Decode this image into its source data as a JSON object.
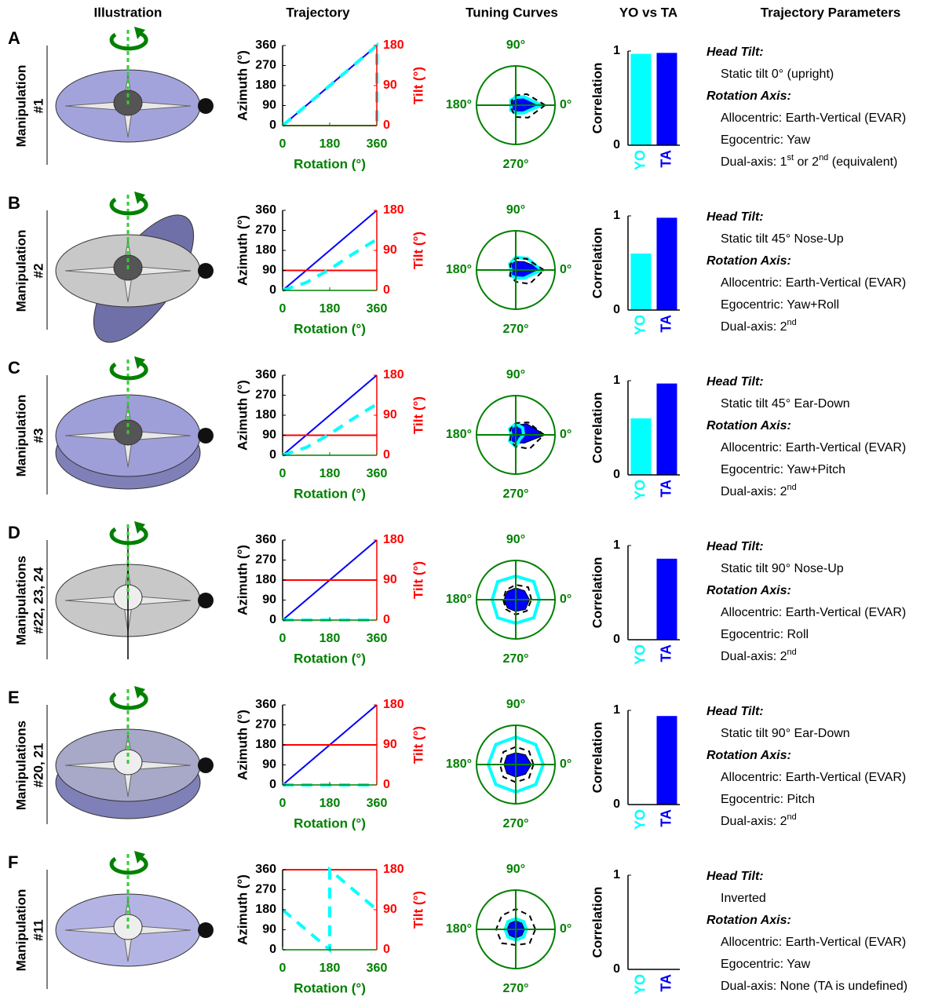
{
  "headers": [
    "Illustration",
    "Trajectory",
    "Tuning Curves",
    "YO vs TA",
    "Trajectory Parameters"
  ],
  "rows": [
    {
      "letter": "A",
      "manipulation": [
        "Manipulation",
        "#1"
      ],
      "head_tilt_label": "Head Tilt:",
      "head_tilt": "Static tilt 0° (upright)",
      "rotation_axis_label": "Rotation Axis:",
      "allocentric": "Allocentric: Earth-Vertical (EVAR)",
      "egocentric": "Egocentric: Yaw",
      "dual_axis": [
        "Dual-axis: 1",
        "st",
        " or 2",
        "nd",
        " (equivalent)"
      ]
    },
    {
      "letter": "B",
      "manipulation": [
        "Manipulation",
        "#2"
      ],
      "head_tilt_label": "Head Tilt:",
      "head_tilt": "Static tilt 45° Nose-Up",
      "rotation_axis_label": "Rotation Axis:",
      "allocentric": "Allocentric: Earth-Vertical (EVAR)",
      "egocentric": "Egocentric: Yaw+Roll",
      "dual_axis": [
        "Dual-axis: 2",
        "nd"
      ]
    },
    {
      "letter": "C",
      "manipulation": [
        "Manipulation",
        "#3"
      ],
      "head_tilt_label": "Head Tilt:",
      "head_tilt": "Static tilt 45° Ear-Down",
      "rotation_axis_label": "Rotation Axis:",
      "allocentric": "Allocentric: Earth-Vertical (EVAR)",
      "egocentric": "Egocentric: Yaw+Pitch",
      "dual_axis": [
        "Dual-axis: 2",
        "nd"
      ]
    },
    {
      "letter": "D",
      "manipulation": [
        "Manipulations",
        "#22, 23, 24"
      ],
      "head_tilt_label": "Head Tilt:",
      "head_tilt": "Static tilt 90° Nose-Up",
      "rotation_axis_label": "Rotation Axis:",
      "allocentric": "Allocentric: Earth-Vertical (EVAR)",
      "egocentric": "Egocentric: Roll",
      "dual_axis": [
        "Dual-axis: 2",
        "nd"
      ]
    },
    {
      "letter": "E",
      "manipulation": [
        "Manipulations",
        "#20, 21"
      ],
      "head_tilt_label": "Head Tilt:",
      "head_tilt": "Static tilt 90° Ear-Down",
      "rotation_axis_label": "Rotation Axis:",
      "allocentric": "Allocentric: Earth-Vertical (EVAR)",
      "egocentric": "Egocentric: Pitch",
      "dual_axis": [
        "Dual-axis: 2",
        "nd"
      ]
    },
    {
      "letter": "F",
      "manipulation": [
        "Manipulation",
        "#11"
      ],
      "head_tilt_label": "Head Tilt:",
      "head_tilt": "Inverted",
      "rotation_axis_label": "Rotation Axis:",
      "allocentric": "Allocentric: Earth-Vertical (EVAR)",
      "egocentric": "Egocentric: Yaw",
      "dual_axis": [
        "Dual-axis: None (TA is undefined)"
      ]
    }
  ],
  "chart_data": [
    {
      "type": "line",
      "xlabel": "Rotation (°)",
      "ylabel": "Azimuth (°)",
      "y2label": "Tilt (°)",
      "xlim": [
        0,
        360
      ],
      "xticks": [
        0,
        180,
        360
      ],
      "ylim": [
        0,
        360
      ],
      "yticks": [
        0,
        90,
        180,
        270,
        360
      ],
      "y2lim": [
        0,
        180
      ],
      "y2ticks": [
        0,
        90,
        180
      ],
      "series": [
        {
          "color": "#0000ff",
          "x": [
            0,
            360
          ],
          "values": [
            0,
            360
          ]
        },
        {
          "color": "#ff0000",
          "axis": "y2",
          "x": [
            0,
            360
          ],
          "values": [
            0,
            0
          ]
        },
        {
          "color": "#00ffff",
          "style": "dashed",
          "x": [
            0,
            360,
            360
          ],
          "values": [
            0,
            360,
            0
          ]
        }
      ]
    },
    {
      "type": "polar",
      "thetaticks": [
        {
          "value": 90,
          "label": "90°"
        },
        {
          "value": 180,
          "label": "180°"
        },
        {
          "value": 0,
          "label": "0°"
        },
        {
          "value": 270,
          "label": "270°"
        }
      ],
      "rlim": [
        0,
        1
      ],
      "theta": [
        0,
        45,
        90,
        135,
        180,
        225,
        270,
        315
      ],
      "series": [
        {
          "color": "#0000ff",
          "style": "filled",
          "values": [
            0.7,
            0.3,
            0.2,
            0.15,
            0.1,
            0.15,
            0.2,
            0.3
          ]
        },
        {
          "color": "#00ffff",
          "values": [
            0.65,
            0.3,
            0.2,
            0.18,
            0.12,
            0.18,
            0.2,
            0.28
          ]
        },
        {
          "color": "#000000",
          "style": "dashed",
          "values": [
            0.75,
            0.4,
            0.25,
            0.15,
            0.1,
            0.15,
            0.3,
            0.45
          ]
        }
      ]
    },
    {
      "type": "bar",
      "ylabel": "Correlation",
      "categories": [
        "YO",
        "TA"
      ],
      "colors": [
        "#00ffff",
        "#0000ff"
      ],
      "values": [
        0.97,
        0.98
      ],
      "ylim": [
        0,
        1
      ],
      "yticks": [
        0,
        1
      ]
    },
    {
      "type": "line",
      "xlabel": "Rotation (°)",
      "ylabel": "Azimuth (°)",
      "y2label": "Tilt (°)",
      "xlim": [
        0,
        360
      ],
      "xticks": [
        0,
        180,
        360
      ],
      "ylim": [
        0,
        360
      ],
      "yticks": [
        0,
        90,
        180,
        270,
        360
      ],
      "y2lim": [
        0,
        180
      ],
      "y2ticks": [
        0,
        90,
        180
      ],
      "series": [
        {
          "color": "#0000ff",
          "x": [
            0,
            360
          ],
          "values": [
            0,
            360
          ]
        },
        {
          "color": "#ff0000",
          "axis": "y2",
          "x": [
            0,
            360
          ],
          "values": [
            45,
            45
          ]
        },
        {
          "color": "#00ffff",
          "style": "dashed",
          "x": [
            0,
            90,
            180,
            270,
            360
          ],
          "values": [
            0,
            35,
            95,
            165,
            230
          ]
        }
      ]
    },
    {
      "type": "polar",
      "thetaticks": [
        {
          "value": 90,
          "label": "90°"
        },
        {
          "value": 180,
          "label": "180°"
        },
        {
          "value": 0,
          "label": "0°"
        },
        {
          "value": 270,
          "label": "270°"
        }
      ],
      "rlim": [
        0,
        1
      ],
      "theta": [
        0,
        45,
        90,
        135,
        180,
        225,
        270,
        315
      ],
      "series": [
        {
          "color": "#0000ff",
          "style": "filled",
          "values": [
            0.75,
            0.3,
            0.22,
            0.2,
            0.12,
            0.2,
            0.22,
            0.3
          ]
        },
        {
          "color": "#00ffff",
          "values": [
            0.65,
            0.42,
            0.32,
            0.22,
            0.12,
            0.2,
            0.2,
            0.3
          ]
        },
        {
          "color": "#000000",
          "style": "dashed",
          "values": [
            0.72,
            0.4,
            0.3,
            0.2,
            0.12,
            0.2,
            0.3,
            0.5
          ]
        }
      ]
    },
    {
      "type": "bar",
      "ylabel": "Correlation",
      "categories": [
        "YO",
        "TA"
      ],
      "colors": [
        "#00ffff",
        "#0000ff"
      ],
      "values": [
        0.6,
        0.98
      ],
      "ylim": [
        0,
        1
      ],
      "yticks": [
        0,
        1
      ]
    },
    {
      "type": "line",
      "xlabel": "Rotation (°)",
      "ylabel": "Azimuth (°)",
      "y2label": "Tilt (°)",
      "xlim": [
        0,
        360
      ],
      "xticks": [
        0,
        180,
        360
      ],
      "ylim": [
        0,
        360
      ],
      "yticks": [
        0,
        90,
        180,
        270,
        360
      ],
      "y2lim": [
        0,
        180
      ],
      "y2ticks": [
        0,
        90,
        180
      ],
      "series": [
        {
          "color": "#0000ff",
          "x": [
            0,
            360
          ],
          "values": [
            0,
            360
          ]
        },
        {
          "color": "#ff0000",
          "axis": "y2",
          "x": [
            0,
            360
          ],
          "values": [
            45,
            45
          ]
        },
        {
          "color": "#00ffff",
          "style": "dashed",
          "x": [
            0,
            90,
            180,
            270,
            360
          ],
          "values": [
            0,
            35,
            95,
            165,
            230
          ]
        }
      ]
    },
    {
      "type": "polar",
      "thetaticks": [
        {
          "value": 90,
          "label": "90°"
        },
        {
          "value": 180,
          "label": "180°"
        },
        {
          "value": 0,
          "label": "0°"
        },
        {
          "value": 270,
          "label": "270°"
        }
      ],
      "rlim": [
        0,
        1
      ],
      "theta": [
        0,
        45,
        90,
        135,
        180,
        225,
        270,
        315
      ],
      "series": [
        {
          "color": "#0000ff",
          "style": "filled",
          "values": [
            0.75,
            0.4,
            0.25,
            0.2,
            0.12,
            0.2,
            0.2,
            0.3
          ]
        },
        {
          "color": "#00ffff",
          "values": [
            0.2,
            0.25,
            0.28,
            0.22,
            0.12,
            0.22,
            0.3,
            0.15
          ]
        },
        {
          "color": "#000000",
          "style": "dashed",
          "values": [
            0.72,
            0.45,
            0.3,
            0.2,
            0.12,
            0.2,
            0.3,
            0.5
          ]
        }
      ]
    },
    {
      "type": "bar",
      "ylabel": "Correlation",
      "categories": [
        "YO",
        "TA"
      ],
      "colors": [
        "#00ffff",
        "#0000ff"
      ],
      "values": [
        0.6,
        0.97
      ],
      "ylim": [
        0,
        1
      ],
      "yticks": [
        0,
        1
      ]
    },
    {
      "type": "line",
      "xlabel": "Rotation (°)",
      "ylabel": "Azimuth (°)",
      "y2label": "Tilt (°)",
      "xlim": [
        0,
        360
      ],
      "xticks": [
        0,
        180,
        360
      ],
      "ylim": [
        0,
        360
      ],
      "yticks": [
        0,
        90,
        180,
        270,
        360
      ],
      "y2lim": [
        0,
        180
      ],
      "y2ticks": [
        0,
        90,
        180
      ],
      "series": [
        {
          "color": "#0000ff",
          "x": [
            0,
            360
          ],
          "values": [
            0,
            360
          ]
        },
        {
          "color": "#ff0000",
          "axis": "y2",
          "x": [
            0,
            360
          ],
          "values": [
            90,
            90
          ]
        },
        {
          "color": "#00ffff",
          "style": "dashed",
          "x": [
            0,
            360
          ],
          "values": [
            0,
            0
          ]
        }
      ]
    },
    {
      "type": "polar",
      "thetaticks": [
        {
          "value": 90,
          "label": "90°"
        },
        {
          "value": 180,
          "label": "180°"
        },
        {
          "value": 0,
          "label": "0°"
        },
        {
          "value": 270,
          "label": "270°"
        }
      ],
      "rlim": [
        0,
        1
      ],
      "theta": [
        0,
        45,
        90,
        135,
        180,
        225,
        270,
        315
      ],
      "series": [
        {
          "color": "#0000ff",
          "style": "filled",
          "values": [
            0.35,
            0.32,
            0.3,
            0.3,
            0.3,
            0.3,
            0.3,
            0.35
          ]
        },
        {
          "color": "#00ffff",
          "values": [
            0.6,
            0.65,
            0.6,
            0.65,
            0.6,
            0.65,
            0.6,
            0.65
          ]
        },
        {
          "color": "#000000",
          "style": "dashed",
          "values": [
            0.4,
            0.45,
            0.38,
            0.35,
            0.32,
            0.35,
            0.38,
            0.4
          ]
        }
      ]
    },
    {
      "type": "bar",
      "ylabel": "Correlation",
      "categories": [
        "YO",
        "TA"
      ],
      "colors": [
        "#00ffff",
        "#0000ff"
      ],
      "values": [
        null,
        0.86
      ],
      "ylim": [
        0,
        1
      ],
      "yticks": [
        0,
        1
      ]
    },
    {
      "type": "line",
      "xlabel": "Rotation (°)",
      "ylabel": "Azimuth (°)",
      "y2label": "Tilt (°)",
      "xlim": [
        0,
        360
      ],
      "xticks": [
        0,
        180,
        360
      ],
      "ylim": [
        0,
        360
      ],
      "yticks": [
        0,
        90,
        180,
        270,
        360
      ],
      "y2lim": [
        0,
        180
      ],
      "y2ticks": [
        0,
        90,
        180
      ],
      "series": [
        {
          "color": "#0000ff",
          "x": [
            0,
            360
          ],
          "values": [
            0,
            360
          ]
        },
        {
          "color": "#ff0000",
          "axis": "y2",
          "x": [
            0,
            360
          ],
          "values": [
            90,
            90
          ]
        },
        {
          "color": "#00ffff",
          "style": "dashed",
          "x": [
            0,
            360
          ],
          "values": [
            0,
            0
          ]
        }
      ]
    },
    {
      "type": "polar",
      "thetaticks": [
        {
          "value": 90,
          "label": "90°"
        },
        {
          "value": 180,
          "label": "180°"
        },
        {
          "value": 0,
          "label": "0°"
        },
        {
          "value": 270,
          "label": "270°"
        }
      ],
      "rlim": [
        0,
        1
      ],
      "theta": [
        0,
        45,
        90,
        135,
        180,
        225,
        270,
        315
      ],
      "series": [
        {
          "color": "#0000ff",
          "style": "filled",
          "values": [
            0.4,
            0.35,
            0.3,
            0.32,
            0.3,
            0.32,
            0.32,
            0.35
          ]
        },
        {
          "color": "#00ffff",
          "values": [
            0.7,
            0.72,
            0.7,
            0.72,
            0.7,
            0.72,
            0.7,
            0.72
          ]
        },
        {
          "color": "#000000",
          "style": "dashed",
          "values": [
            0.45,
            0.48,
            0.45,
            0.45,
            0.4,
            0.45,
            0.45,
            0.48
          ]
        }
      ]
    },
    {
      "type": "bar",
      "ylabel": "Correlation",
      "categories": [
        "YO",
        "TA"
      ],
      "colors": [
        "#00ffff",
        "#0000ff"
      ],
      "values": [
        null,
        0.94
      ],
      "ylim": [
        0,
        1
      ],
      "yticks": [
        0,
        1
      ]
    },
    {
      "type": "line",
      "xlabel": "Rotation (°)",
      "ylabel": "Azimuth (°)",
      "y2label": "Tilt (°)",
      "xlim": [
        0,
        360
      ],
      "xticks": [
        0,
        180,
        360
      ],
      "ylim": [
        0,
        360
      ],
      "yticks": [
        0,
        90,
        180,
        270,
        360
      ],
      "y2lim": [
        0,
        180
      ],
      "y2ticks": [
        0,
        90,
        180
      ],
      "series": [
        {
          "color": "#ff0000",
          "axis": "y2",
          "x": [
            0,
            360
          ],
          "values": [
            180,
            180
          ]
        },
        {
          "color": "#00ffff",
          "style": "dashed",
          "x": [
            0,
            180,
            180,
            360
          ],
          "values": [
            180,
            0,
            360,
            180
          ]
        }
      ]
    },
    {
      "type": "polar",
      "thetaticks": [
        {
          "value": 90,
          "label": "90°"
        },
        {
          "value": 180,
          "label": "180°"
        },
        {
          "value": 0,
          "label": "0°"
        },
        {
          "value": 270,
          "label": "270°"
        }
      ],
      "rlim": [
        0,
        1
      ],
      "theta": [
        0,
        45,
        90,
        135,
        180,
        225,
        270,
        315
      ],
      "series": [
        {
          "color": "#0000ff",
          "style": "filled",
          "values": [
            0.22,
            0.22,
            0.22,
            0.22,
            0.22,
            0.22,
            0.22,
            0.22
          ]
        },
        {
          "color": "#00ffff",
          "values": [
            0.27,
            0.28,
            0.27,
            0.28,
            0.27,
            0.28,
            0.27,
            0.28
          ]
        },
        {
          "color": "#000000",
          "style": "dashed",
          "values": [
            0.5,
            0.5,
            0.52,
            0.5,
            0.5,
            0.5,
            0.4,
            0.5
          ]
        }
      ]
    },
    {
      "type": "bar",
      "ylabel": "Correlation",
      "categories": [
        "YO",
        "TA"
      ],
      "colors": [
        "#00ffff",
        "#0000ff"
      ],
      "values": [
        null,
        null
      ],
      "ylim": [
        0,
        1
      ],
      "yticks": [
        0,
        1
      ]
    }
  ]
}
